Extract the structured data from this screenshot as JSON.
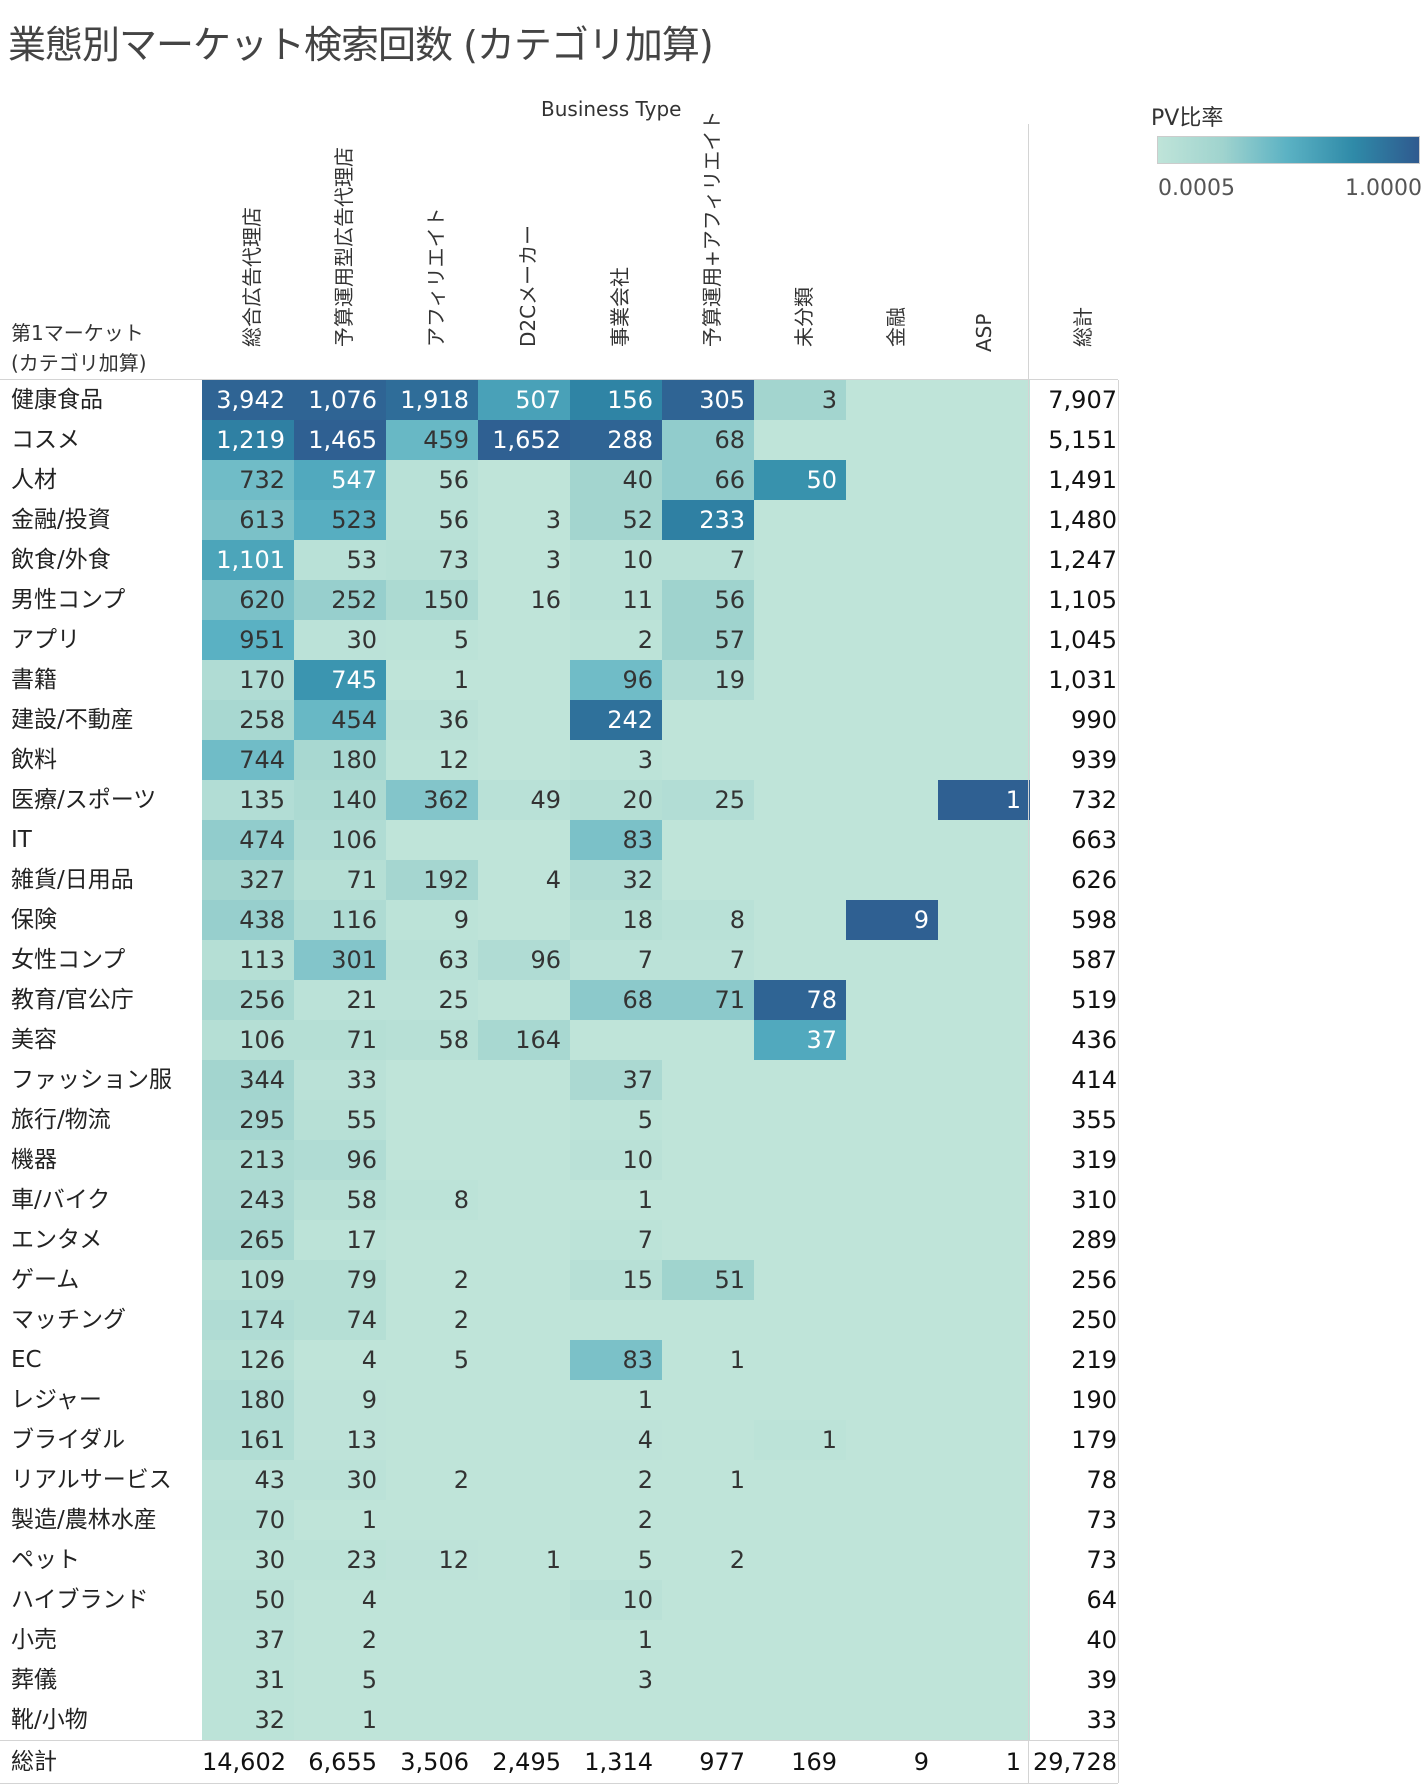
{
  "title": "業態別マーケット検索回数 (カテゴリ加算)",
  "column_group_label": "Business Type",
  "row_header_label": [
    "第1マーケット",
    "(カテゴリ加算)"
  ],
  "legend": {
    "title": "PV比率",
    "min_label": "0.0005",
    "max_label": "1.0000",
    "colors": [
      "#bfe4d9",
      "#9fd3ce",
      "#5ab1c3",
      "#2f8aa8",
      "#2f5a8f"
    ]
  },
  "chart_data": {
    "type": "heatmap",
    "title": "業態別マーケット検索回数 (カテゴリ加算)",
    "xlabel": "Business Type",
    "ylabel": "第1マーケット (カテゴリ加算)",
    "columns": [
      "総合広告代理店",
      "予算運用型広告代理店",
      "アフィリエイト",
      "D2Cメーカー",
      "事業会社",
      "予算運用+アフィリエイト",
      "未分類",
      "金融",
      "ASP"
    ],
    "total_label": "総計",
    "rows": [
      {
        "name": "健康食品",
        "values": [
          "3,942",
          "1,076",
          "1,918",
          "507",
          "156",
          "305",
          "3",
          "",
          ""
        ],
        "intensity": [
          0.95,
          0.95,
          0.9,
          0.6,
          0.78,
          0.95,
          0.22,
          0,
          0
        ],
        "total": "7,907"
      },
      {
        "name": "コスメ",
        "values": [
          "1,219",
          "1,465",
          "459",
          "1,652",
          "288",
          "68",
          "",
          "",
          ""
        ],
        "intensity": [
          0.8,
          0.97,
          0.45,
          0.97,
          0.95,
          0.3,
          0,
          0,
          0
        ],
        "total": "5,151"
      },
      {
        "name": "人材",
        "values": [
          "732",
          "547",
          "56",
          "",
          "40",
          "66",
          "50",
          "",
          ""
        ],
        "intensity": [
          0.42,
          0.55,
          0.05,
          0,
          0.22,
          0.3,
          0.7,
          0,
          0
        ],
        "total": "1,491"
      },
      {
        "name": "金融/投資",
        "values": [
          "613",
          "523",
          "56",
          "3",
          "52",
          "233",
          "",
          "",
          ""
        ],
        "intensity": [
          0.38,
          0.52,
          0.05,
          0,
          0.22,
          0.8,
          0,
          0,
          0
        ],
        "total": "1,480"
      },
      {
        "name": "飲食/外食",
        "values": [
          "1,101",
          "53",
          "73",
          "3",
          "10",
          "7",
          "",
          "",
          ""
        ],
        "intensity": [
          0.58,
          0.05,
          0.06,
          0,
          0.05,
          0.05,
          0,
          0,
          0
        ],
        "total": "1,247"
      },
      {
        "name": "男性コンプ",
        "values": [
          "620",
          "252",
          "150",
          "16",
          "11",
          "56",
          "",
          "",
          ""
        ],
        "intensity": [
          0.38,
          0.28,
          0.15,
          0,
          0.05,
          0.25,
          0,
          0,
          0
        ],
        "total": "1,105"
      },
      {
        "name": "アプリ",
        "values": [
          "951",
          "30",
          "5",
          "",
          "2",
          "57",
          "",
          "",
          ""
        ],
        "intensity": [
          0.5,
          0.03,
          0.02,
          0,
          0.02,
          0.25,
          0,
          0,
          0
        ],
        "total": "1,045"
      },
      {
        "name": "書籍",
        "values": [
          "170",
          "745",
          "1",
          "",
          "96",
          "19",
          "",
          "",
          ""
        ],
        "intensity": [
          0.12,
          0.68,
          0,
          0,
          0.42,
          0.12,
          0,
          0,
          0
        ],
        "total": "1,031"
      },
      {
        "name": "建設/不動産",
        "values": [
          "258",
          "454",
          "36",
          "",
          "242",
          "",
          "",
          "",
          ""
        ],
        "intensity": [
          0.18,
          0.45,
          0.04,
          0,
          0.88,
          0,
          0,
          0,
          0
        ],
        "total": "990"
      },
      {
        "name": "飲料",
        "values": [
          "744",
          "180",
          "12",
          "",
          "3",
          "",
          "",
          "",
          ""
        ],
        "intensity": [
          0.42,
          0.18,
          0.02,
          0,
          0.02,
          0,
          0,
          0,
          0
        ],
        "total": "939"
      },
      {
        "name": "医療/スポーツ",
        "values": [
          "135",
          "140",
          "362",
          "49",
          "20",
          "25",
          "",
          "",
          "1"
        ],
        "intensity": [
          0.1,
          0.15,
          0.35,
          0.05,
          0.08,
          0.1,
          0,
          0,
          0.97
        ],
        "total": "732"
      },
      {
        "name": "IT",
        "values": [
          "474",
          "106",
          "",
          "",
          "83",
          "",
          "",
          "",
          ""
        ],
        "intensity": [
          0.3,
          0.12,
          0,
          0,
          0.38,
          0,
          0,
          0,
          0
        ],
        "total": "663"
      },
      {
        "name": "雑貨/日用品",
        "values": [
          "327",
          "71",
          "192",
          "4",
          "32",
          "",
          "",
          "",
          ""
        ],
        "intensity": [
          0.22,
          0.08,
          0.2,
          0,
          0.12,
          0,
          0,
          0,
          0
        ],
        "total": "626"
      },
      {
        "name": "保険",
        "values": [
          "438",
          "116",
          "9",
          "",
          "18",
          "8",
          "",
          "9",
          ""
        ],
        "intensity": [
          0.28,
          0.13,
          0.02,
          0,
          0.08,
          0.05,
          0,
          0.97,
          0
        ],
        "total": "598"
      },
      {
        "name": "女性コンプ",
        "values": [
          "113",
          "301",
          "63",
          "96",
          "7",
          "7",
          "",
          "",
          ""
        ],
        "intensity": [
          0.08,
          0.35,
          0.05,
          0.12,
          0.03,
          0.03,
          0,
          0,
          0
        ],
        "total": "587"
      },
      {
        "name": "教育/官公庁",
        "values": [
          "256",
          "21",
          "25",
          "",
          "68",
          "71",
          "78",
          "",
          ""
        ],
        "intensity": [
          0.18,
          0.03,
          0.03,
          0,
          0.32,
          0.32,
          0.95,
          0,
          0
        ],
        "total": "519"
      },
      {
        "name": "美容",
        "values": [
          "106",
          "71",
          "58",
          "164",
          "",
          "",
          "37",
          "",
          ""
        ],
        "intensity": [
          0.08,
          0.08,
          0.06,
          0.18,
          0,
          0,
          0.55,
          0,
          0
        ],
        "total": "436"
      },
      {
        "name": "ファッション服",
        "values": [
          "344",
          "33",
          "",
          "",
          "37",
          "",
          "",
          "",
          ""
        ],
        "intensity": [
          0.22,
          0.04,
          0,
          0,
          0.16,
          0,
          0,
          0,
          0
        ],
        "total": "414"
      },
      {
        "name": "旅行/物流",
        "values": [
          "295",
          "55",
          "",
          "",
          "5",
          "",
          "",
          "",
          ""
        ],
        "intensity": [
          0.2,
          0.06,
          0,
          0,
          0.02,
          0,
          0,
          0,
          0
        ],
        "total": "355"
      },
      {
        "name": "機器",
        "values": [
          "213",
          "96",
          "",
          "",
          "10",
          "",
          "",
          "",
          ""
        ],
        "intensity": [
          0.15,
          0.12,
          0,
          0,
          0.04,
          0,
          0,
          0,
          0
        ],
        "total": "319"
      },
      {
        "name": "車/バイク",
        "values": [
          "243",
          "58",
          "8",
          "",
          "1",
          "",
          "",
          "",
          ""
        ],
        "intensity": [
          0.16,
          0.06,
          0.02,
          0,
          0,
          0,
          0,
          0,
          0
        ],
        "total": "310"
      },
      {
        "name": "エンタメ",
        "values": [
          "265",
          "17",
          "",
          "",
          "7",
          "",
          "",
          "",
          ""
        ],
        "intensity": [
          0.18,
          0.02,
          0,
          0,
          0.02,
          0,
          0,
          0,
          0
        ],
        "total": "289"
      },
      {
        "name": "ゲーム",
        "values": [
          "109",
          "79",
          "2",
          "",
          "15",
          "51",
          "",
          "",
          ""
        ],
        "intensity": [
          0.08,
          0.08,
          0,
          0,
          0.06,
          0.24,
          0,
          0,
          0
        ],
        "total": "256"
      },
      {
        "name": "マッチング",
        "values": [
          "174",
          "74",
          "2",
          "",
          "",
          "",
          "",
          "",
          ""
        ],
        "intensity": [
          0.12,
          0.08,
          0,
          0,
          0,
          0,
          0,
          0,
          0
        ],
        "total": "250"
      },
      {
        "name": "EC",
        "values": [
          "126",
          "4",
          "5",
          "",
          "83",
          "1",
          "",
          "",
          ""
        ],
        "intensity": [
          0.08,
          0,
          0,
          0,
          0.38,
          0,
          0,
          0,
          0
        ],
        "total": "219"
      },
      {
        "name": "レジャー",
        "values": [
          "180",
          "9",
          "",
          "",
          "1",
          "",
          "",
          "",
          ""
        ],
        "intensity": [
          0.12,
          0.01,
          0,
          0,
          0,
          0,
          0,
          0,
          0
        ],
        "total": "190"
      },
      {
        "name": "ブライダル",
        "values": [
          "161",
          "13",
          "",
          "",
          "4",
          "",
          "1",
          "",
          ""
        ],
        "intensity": [
          0.11,
          0.01,
          0,
          0,
          0.01,
          0,
          0.02,
          0,
          0
        ],
        "total": "179"
      },
      {
        "name": "リアルサービス",
        "values": [
          "43",
          "30",
          "2",
          "",
          "2",
          "1",
          "",
          "",
          ""
        ],
        "intensity": [
          0.03,
          0.03,
          0,
          0,
          0,
          0,
          0,
          0,
          0
        ],
        "total": "78"
      },
      {
        "name": "製造/農林水産",
        "values": [
          "70",
          "1",
          "",
          "",
          "2",
          "",
          "",
          "",
          ""
        ],
        "intensity": [
          0.05,
          0,
          0,
          0,
          0,
          0,
          0,
          0,
          0
        ],
        "total": "73"
      },
      {
        "name": "ペット",
        "values": [
          "30",
          "23",
          "12",
          "1",
          "5",
          "2",
          "",
          "",
          ""
        ],
        "intensity": [
          0.02,
          0.02,
          0.01,
          0,
          0,
          0,
          0,
          0,
          0
        ],
        "total": "73"
      },
      {
        "name": "ハイブランド",
        "values": [
          "50",
          "4",
          "",
          "",
          "10",
          "",
          "",
          "",
          ""
        ],
        "intensity": [
          0.04,
          0,
          0,
          0,
          0.04,
          0,
          0,
          0,
          0
        ],
        "total": "64"
      },
      {
        "name": "小売",
        "values": [
          "37",
          "2",
          "",
          "",
          "1",
          "",
          "",
          "",
          ""
        ],
        "intensity": [
          0.03,
          0,
          0,
          0,
          0,
          0,
          0,
          0,
          0
        ],
        "total": "40"
      },
      {
        "name": "葬儀",
        "values": [
          "31",
          "5",
          "",
          "",
          "3",
          "",
          "",
          "",
          ""
        ],
        "intensity": [
          0.02,
          0,
          0,
          0,
          0,
          0,
          0,
          0,
          0
        ],
        "total": "39"
      },
      {
        "name": "靴/小物",
        "values": [
          "32",
          "1",
          "",
          "",
          "",
          "",
          "",
          "",
          ""
        ],
        "intensity": [
          0.02,
          0,
          0,
          0,
          0,
          0,
          0,
          0,
          0
        ],
        "total": "33"
      }
    ],
    "column_totals": [
      "14,602",
      "6,655",
      "3,506",
      "2,495",
      "1,314",
      "977",
      "169",
      "9",
      "1"
    ],
    "grand_total": "29,728"
  }
}
